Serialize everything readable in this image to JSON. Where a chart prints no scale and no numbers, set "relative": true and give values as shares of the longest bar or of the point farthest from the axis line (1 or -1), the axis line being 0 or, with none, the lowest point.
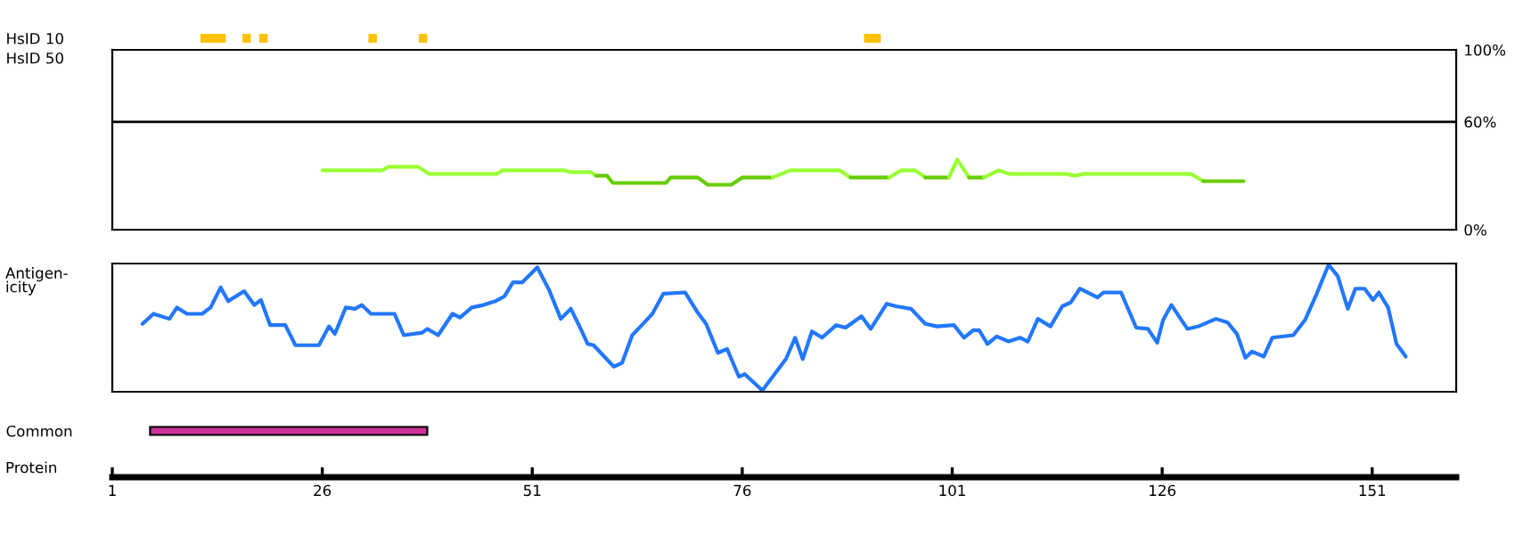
{
  "chart_data": [
    {
      "type": "bar",
      "orientation": "horizontal",
      "categories": [
        "HsID 10",
        "HsID 50"
      ],
      "xlim": [
        1,
        161
      ],
      "tick_labels": "y",
      "series": [
        {
          "color": "#ffc000",
          "base": [
            11.5,
            null
          ],
          "values": [
            3,
            null
          ]
        },
        {
          "color": "#ffc000",
          "base": [
            16.5,
            null
          ],
          "values": [
            1,
            null
          ]
        },
        {
          "color": "#ffc000",
          "base": [
            18.5,
            null
          ],
          "values": [
            1,
            null
          ]
        },
        {
          "color": "#ffc000",
          "base": [
            31.5,
            null
          ],
          "values": [
            1,
            null
          ]
        },
        {
          "color": "#ffc000",
          "base": [
            37.5,
            null
          ],
          "values": [
            1,
            null
          ]
        },
        {
          "color": "#ffc000",
          "base": [
            90.5,
            null
          ],
          "values": [
            2,
            null
          ]
        }
      ]
    },
    {
      "type": "line",
      "xlim": [
        1,
        161
      ],
      "ylim": [
        0,
        100
      ],
      "yticks": [
        {
          "value": 0,
          "label": "0%"
        },
        {
          "value": 60,
          "label": "60%"
        },
        {
          "value": 100,
          "label": "100%"
        }
      ],
      "tick_labels": "y",
      "ref_lines": [
        {
          "axis": "y",
          "value": 60,
          "color": "#000000"
        }
      ],
      "series": [
        {
          "color": "#99ff33",
          "x": [
            26,
            33.2,
            33.8,
            37.4,
            38.7,
            46.8,
            47.4,
            54.8,
            55.5,
            58,
            58.6
          ],
          "values": [
            33,
            33,
            35,
            35,
            31,
            31,
            33,
            33,
            32,
            32,
            30
          ]
        },
        {
          "color": "#66cc00",
          "x": [
            58.6,
            59.9,
            60.6,
            66.9,
            67.5,
            70.7,
            71.9,
            74.7,
            76,
            79.6
          ],
          "values": [
            30,
            30,
            26,
            26,
            29,
            29,
            25,
            25,
            29,
            29
          ]
        },
        {
          "color": "#99ff33",
          "x": [
            79.6,
            81.7,
            87.6,
            88.9
          ],
          "values": [
            29,
            33,
            33,
            29
          ]
        },
        {
          "color": "#66cc00",
          "x": [
            88.9,
            93.5
          ],
          "values": [
            29,
            29
          ]
        },
        {
          "color": "#99ff33",
          "x": [
            93.5,
            94.9,
            96.6,
            97.8
          ],
          "values": [
            29,
            33,
            33,
            29
          ]
        },
        {
          "color": "#66cc00",
          "x": [
            97.8,
            100.6
          ],
          "values": [
            29,
            29
          ]
        },
        {
          "color": "#99ff33",
          "x": [
            100.6,
            101.6,
            103
          ],
          "values": [
            29,
            39,
            29
          ]
        },
        {
          "color": "#66cc00",
          "x": [
            103,
            104.8
          ],
          "values": [
            29,
            29
          ]
        },
        {
          "color": "#99ff33",
          "x": [
            104.8,
            106.5,
            107.8,
            114.6,
            115.6,
            116.7,
            129.4,
            130.9
          ],
          "values": [
            29,
            33,
            31,
            31,
            30,
            31,
            31,
            27
          ]
        },
        {
          "color": "#66cc00",
          "x": [
            130.9,
            135.7
          ],
          "values": [
            27,
            27
          ]
        }
      ]
    },
    {
      "type": "line",
      "relative": true,
      "xlim": [
        1,
        161
      ],
      "ylabel": "Antigen-\nicity",
      "tick_labels": false,
      "series": [
        {
          "color": "#2277ff",
          "x": [
            4.6,
            5.9,
            7.8,
            8.7,
            9.9,
            11.7,
            12.7,
            13.9,
            14.8,
            16.7,
            17.9,
            18.7,
            19.8,
            21.6,
            22.8,
            25.6,
            26.8,
            27.5,
            28.8,
            29.9,
            30.7,
            31.8,
            34.6,
            35.7,
            37.9,
            38.5,
            39.8,
            41.5,
            42.4,
            43.8,
            45.2,
            46.6,
            47.7,
            48.7,
            49.8,
            51.6,
            53.0,
            54.4,
            55.6,
            56.7,
            57.6,
            58.3,
            60.7,
            61.7,
            62.9,
            63.9,
            65.3,
            66.6,
            69.2,
            70.6,
            71.7,
            73.1,
            74.2,
            75.6,
            76.3,
            78.4,
            81.2,
            82.3,
            83.2,
            84.3,
            85.5,
            87.2,
            88.3,
            90.2,
            91.3,
            93.2,
            94.3,
            96.1,
            97.8,
            99.2,
            101.2,
            102.4,
            103.5,
            104.2,
            105.2,
            106.3,
            107.7,
            109.1,
            110.0,
            111.2,
            112.7,
            114.1,
            115.1,
            116.2,
            118.3,
            119.0,
            121.1,
            122.9,
            124.3,
            125.4,
            126.1,
            127.1,
            129.0,
            130.3,
            132.4,
            133.8,
            134.9,
            135.9,
            136.7,
            138.1,
            139.1,
            141.6,
            143.0,
            144.4,
            145.8,
            146.9,
            148.1,
            149.0,
            150.1,
            151.1,
            151.8,
            152.9,
            153.9,
            155.0
          ],
          "values": [
            0.53,
            0.61,
            0.57,
            0.66,
            0.61,
            0.61,
            0.66,
            0.82,
            0.71,
            0.79,
            0.68,
            0.72,
            0.52,
            0.52,
            0.36,
            0.36,
            0.51,
            0.45,
            0.66,
            0.65,
            0.68,
            0.61,
            0.61,
            0.44,
            0.46,
            0.49,
            0.44,
            0.61,
            0.58,
            0.66,
            0.68,
            0.71,
            0.75,
            0.86,
            0.86,
            0.98,
            0.8,
            0.57,
            0.65,
            0.5,
            0.37,
            0.36,
            0.19,
            0.22,
            0.44,
            0.51,
            0.61,
            0.77,
            0.78,
            0.63,
            0.53,
            0.3,
            0.33,
            0.11,
            0.13,
            0.0,
            0.25,
            0.42,
            0.25,
            0.47,
            0.42,
            0.52,
            0.5,
            0.59,
            0.49,
            0.69,
            0.67,
            0.65,
            0.53,
            0.51,
            0.52,
            0.42,
            0.48,
            0.48,
            0.37,
            0.43,
            0.39,
            0.42,
            0.39,
            0.57,
            0.51,
            0.67,
            0.7,
            0.81,
            0.74,
            0.78,
            0.78,
            0.5,
            0.49,
            0.38,
            0.56,
            0.68,
            0.49,
            0.51,
            0.57,
            0.54,
            0.45,
            0.26,
            0.31,
            0.27,
            0.42,
            0.44,
            0.56,
            0.77,
            1.0,
            0.91,
            0.65,
            0.81,
            0.81,
            0.72,
            0.78,
            0.66,
            0.37,
            0.27
          ]
        }
      ]
    },
    {
      "type": "bar",
      "orientation": "horizontal",
      "categories": [
        "Common"
      ],
      "xlim": [
        1,
        161
      ],
      "xticks": [
        1,
        26,
        51,
        76,
        101,
        126,
        151
      ],
      "xlabel": "Protein",
      "series": [
        {
          "color": "#cc3399",
          "base": [
            5.5
          ],
          "values": [
            33
          ]
        }
      ]
    }
  ]
}
